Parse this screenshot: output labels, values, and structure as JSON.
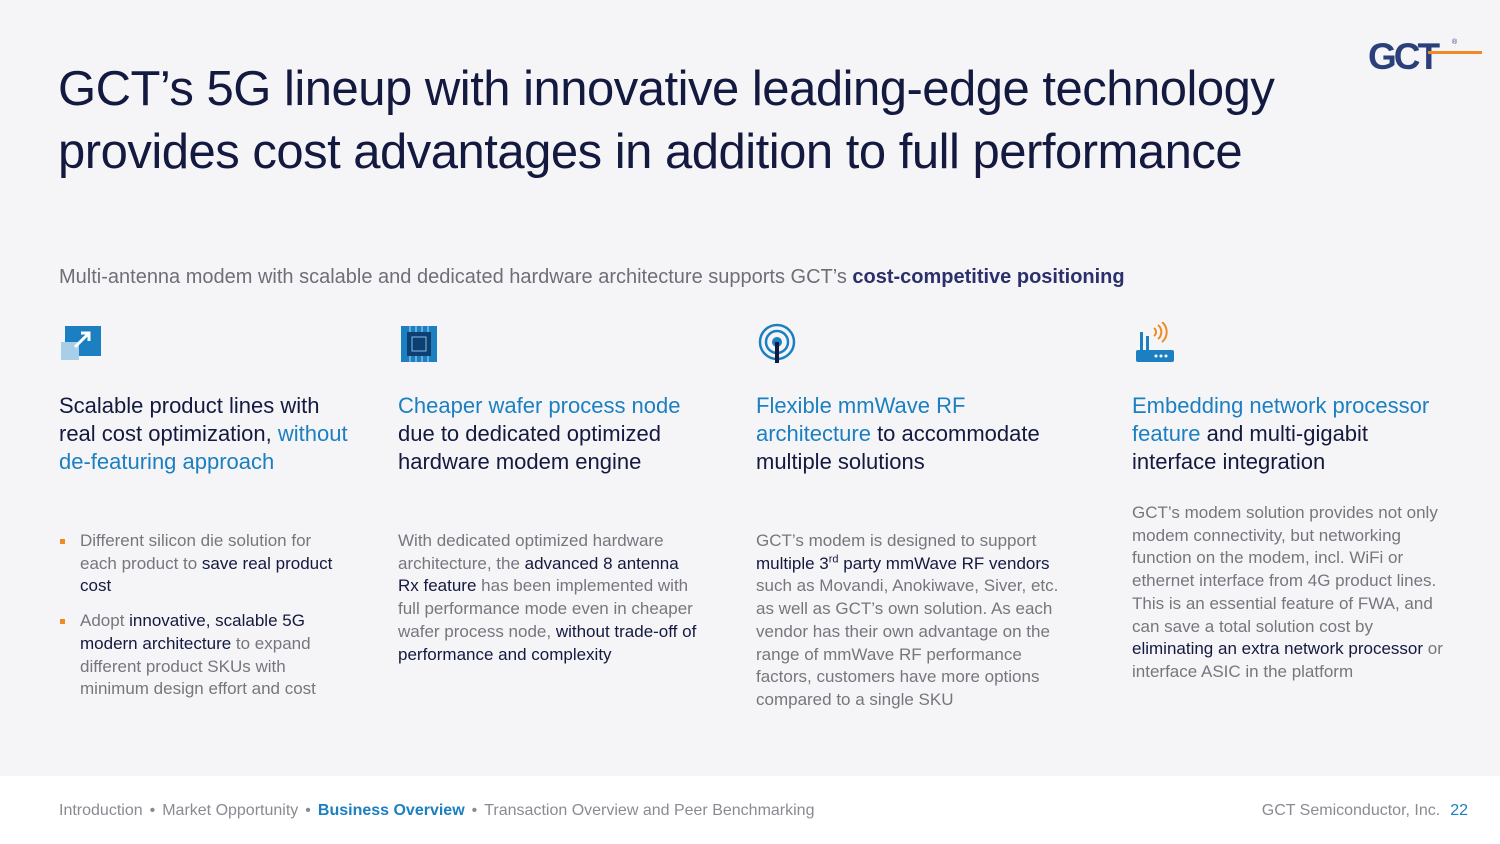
{
  "logo": {
    "text": "GCT",
    "mark": "®"
  },
  "title": "GCT’s 5G lineup with innovative leading-edge technology provides cost advantages in addition to full performance",
  "subtitle": {
    "plain": "Multi-antenna modem with scalable and dedicated hardware architecture supports GCT’s ",
    "highlight": "cost-competitive positioning"
  },
  "columns": [
    {
      "icon": "scale-arrow-icon",
      "heading": {
        "a": "Scalable product lines with real cost optimization, ",
        "b": "without de-featuring approach"
      },
      "bullets": [
        {
          "a": "Different silicon die solution for each product to ",
          "b": "save real product cost",
          "c": ""
        },
        {
          "a": "Adopt ",
          "b": "innovative, scalable 5G modern architecture",
          "c": " to expand different product SKUs with minimum design effort and cost"
        }
      ]
    },
    {
      "icon": "chip-icon",
      "heading": {
        "a": "Cheaper wafer process node",
        "b": " due to dedicated optimized hardware modem engine"
      },
      "body": {
        "a": "With dedicated optimized hardware architecture, the ",
        "b": "advanced 8 antenna Rx feature",
        "c": " has been implemented with full performance mode even in cheaper wafer process node, ",
        "d": "without trade-off of performance and complexity"
      }
    },
    {
      "icon": "antenna-icon",
      "heading": {
        "a": "Flexible mmWave RF architecture",
        "b": " to accommodate multiple solutions"
      },
      "body": {
        "a": "GCT’s modem is designed to support ",
        "b1": "multiple 3",
        "sup": "rd",
        "b2": " party mmWave RF vendors",
        "c": " such as Movandi, Anokiwave, Siver, etc. as well as GCT’s own solution. As each vendor has their own advantage on the range of mmWave RF performance factors, customers have more options compared to a single SKU"
      }
    },
    {
      "icon": "router-icon",
      "heading": {
        "a": "Embedding network processor feature",
        "b": " and multi-gigabit interface integration"
      },
      "body": {
        "a": "GCT’s modem solution provides not only modem connectivity, but networking function on the modem, incl. WiFi or ethernet interface from 4G product lines. This is an essential feature of FWA, and can save a total solution cost by ",
        "b": "eliminating an extra network processor",
        "c": " or interface ASIC in the platform"
      }
    }
  ],
  "footer": {
    "nav": [
      "Introduction",
      "Market Opportunity",
      "Business Overview",
      "Transaction Overview and Peer Benchmarking"
    ],
    "active_index": 2,
    "separator": "•",
    "company": "GCT Semiconductor, Inc.",
    "page": "22"
  },
  "colors": {
    "navy": "#13193f",
    "blue": "#1b7fc1",
    "orange": "#f08a24",
    "gray": "#76767e",
    "background": "#f5f5f7"
  }
}
